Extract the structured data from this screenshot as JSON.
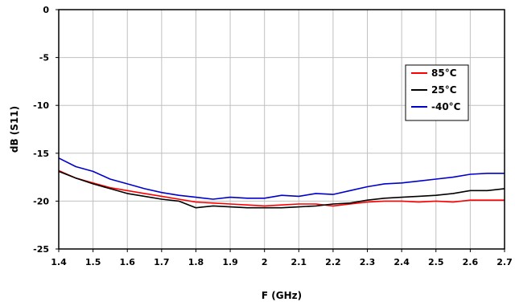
{
  "chart_data": {
    "type": "line",
    "title": "",
    "xlabel": "F (GHz)",
    "ylabel": "dB (S11)",
    "xlim": [
      1.4,
      2.7
    ],
    "ylim": [
      -25,
      0
    ],
    "x_ticks": [
      "1.4",
      "1.5",
      "1.6",
      "1.7",
      "1.8",
      "1.9",
      "2",
      "2.1",
      "2.2",
      "2.3",
      "2.4",
      "2.5",
      "2.6",
      "2.7"
    ],
    "y_ticks": [
      "0",
      "-5",
      "-10",
      "-15",
      "-20",
      "-25"
    ],
    "grid": true,
    "legend_position": "right",
    "x": [
      1.4,
      1.45,
      1.5,
      1.55,
      1.6,
      1.65,
      1.7,
      1.75,
      1.8,
      1.85,
      1.9,
      1.95,
      2.0,
      2.05,
      2.1,
      2.15,
      2.2,
      2.25,
      2.3,
      2.35,
      2.4,
      2.45,
      2.5,
      2.55,
      2.6,
      2.65,
      2.7
    ],
    "series": [
      {
        "name": "85°C",
        "color": "#ff0000",
        "values": [
          -16.8,
          -17.6,
          -18.1,
          -18.6,
          -18.9,
          -19.2,
          -19.5,
          -19.8,
          -20.1,
          -20.2,
          -20.3,
          -20.4,
          -20.5,
          -20.4,
          -20.3,
          -20.3,
          -20.5,
          -20.3,
          -20.1,
          -20.0,
          -20.0,
          -20.1,
          -20.0,
          -20.1,
          -19.9,
          -19.9,
          -19.9
        ]
      },
      {
        "name": "25°C",
        "color": "#000000",
        "values": [
          -16.9,
          -17.6,
          -18.2,
          -18.7,
          -19.2,
          -19.5,
          -19.8,
          -20.0,
          -20.7,
          -20.5,
          -20.6,
          -20.7,
          -20.7,
          -20.7,
          -20.6,
          -20.5,
          -20.3,
          -20.2,
          -19.9,
          -19.7,
          -19.6,
          -19.5,
          -19.4,
          -19.2,
          -18.9,
          -18.9,
          -18.7
        ]
      },
      {
        "name": "-40°C",
        "color": "#0000cc",
        "values": [
          -15.5,
          -16.4,
          -16.9,
          -17.7,
          -18.2,
          -18.7,
          -19.1,
          -19.4,
          -19.6,
          -19.8,
          -19.6,
          -19.7,
          -19.7,
          -19.4,
          -19.5,
          -19.2,
          -19.3,
          -18.9,
          -18.5,
          -18.2,
          -18.1,
          -17.9,
          -17.7,
          -17.5,
          -17.2,
          -17.1,
          -17.1
        ]
      }
    ]
  }
}
